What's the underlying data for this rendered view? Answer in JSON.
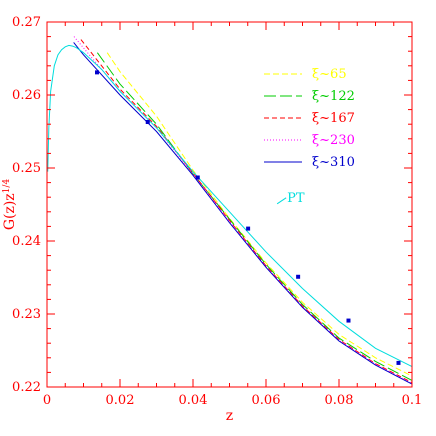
{
  "chart_data": {
    "type": "line",
    "xlabel": "z",
    "ylabel": "G(z)z¹ᐟ⁴",
    "ylabel_display": "G(z)z1/4",
    "xlim": [
      0,
      0.1
    ],
    "ylim": [
      0.22,
      0.27
    ],
    "x_ticks": [
      0,
      0.02,
      0.04,
      0.06,
      0.08,
      0.1
    ],
    "x_tick_labels": [
      "0",
      "0.02",
      "0.04",
      "0.06",
      "0.08",
      "0.1"
    ],
    "y_ticks": [
      0.22,
      0.23,
      0.24,
      0.25,
      0.26,
      0.27
    ],
    "y_tick_labels": [
      "0.22",
      "0.23",
      "0.24",
      "0.25",
      "0.26",
      "0.27"
    ],
    "grid": false,
    "legend_placement": "top-right",
    "series": [
      {
        "name": "ξ~65",
        "color": "#ffff00",
        "dash": "6,3",
        "x": [
          0.0165,
          0.02,
          0.03,
          0.04,
          0.05,
          0.06,
          0.07,
          0.08,
          0.09,
          0.1
        ],
        "y": [
          0.2658,
          0.2632,
          0.2571,
          0.2497,
          0.2431,
          0.237,
          0.2316,
          0.2272,
          0.224,
          0.2215
        ]
      },
      {
        "name": "ξ~122",
        "color": "#00cc00",
        "dash": "12,4",
        "x": [
          0.0138,
          0.02,
          0.03,
          0.04,
          0.05,
          0.06,
          0.07,
          0.08,
          0.09,
          0.1
        ],
        "y": [
          0.2658,
          0.2615,
          0.256,
          0.2492,
          0.243,
          0.2368,
          0.2313,
          0.2267,
          0.2235,
          0.2209
        ]
      },
      {
        "name": "ξ~167",
        "color": "#ff0000",
        "dash": "5,3",
        "x": [
          0.0093,
          0.02,
          0.03,
          0.04,
          0.05,
          0.06,
          0.07,
          0.08,
          0.09,
          0.1
        ],
        "y": [
          0.2676,
          0.2608,
          0.2557,
          0.2493,
          0.2428,
          0.2366,
          0.2311,
          0.2265,
          0.2232,
          0.2206
        ]
      },
      {
        "name": "ξ~230",
        "color": "#ff00ff",
        "dash": "1,2",
        "x": [
          0.0074,
          0.02,
          0.03,
          0.04,
          0.05,
          0.06,
          0.07,
          0.08,
          0.09,
          0.1
        ],
        "y": [
          0.268,
          0.2605,
          0.2555,
          0.2492,
          0.2427,
          0.2365,
          0.231,
          0.2264,
          0.2231,
          0.2205
        ]
      },
      {
        "name": "ξ~310",
        "color": "#0000cc",
        "dash": "",
        "x": [
          0.0073,
          0.01,
          0.02,
          0.03,
          0.04,
          0.05,
          0.06,
          0.07,
          0.08,
          0.09,
          0.1
        ],
        "y": [
          0.2672,
          0.2655,
          0.26,
          0.255,
          0.249,
          0.2425,
          0.2364,
          0.2309,
          0.2263,
          0.223,
          0.2204
        ]
      },
      {
        "name": "PT",
        "color": "#00dddd",
        "dash": "",
        "x": [
          0.0002,
          0.0005,
          0.001,
          0.002,
          0.003,
          0.004,
          0.005,
          0.006,
          0.007,
          0.008,
          0.01,
          0.015,
          0.02,
          0.03,
          0.04,
          0.05,
          0.06,
          0.07,
          0.08,
          0.09,
          0.1
        ],
        "y": [
          0.2495,
          0.2555,
          0.2605,
          0.264,
          0.2655,
          0.2662,
          0.2666,
          0.2668,
          0.2667,
          0.2665,
          0.2658,
          0.2635,
          0.2605,
          0.2555,
          0.2495,
          0.244,
          0.2385,
          0.2335,
          0.229,
          0.2253,
          0.2228
        ]
      }
    ],
    "markers": {
      "color": "#0000cc",
      "x": [
        0.0137,
        0.0276,
        0.0413,
        0.0551,
        0.0688,
        0.0826,
        0.0963
      ],
      "y": [
        0.2631,
        0.2563,
        0.2487,
        0.2417,
        0.2351,
        0.2291,
        0.2233
      ]
    },
    "annotation": {
      "text": "PT",
      "x": 0.0625,
      "y": 0.244,
      "color": "#00dddd"
    }
  }
}
